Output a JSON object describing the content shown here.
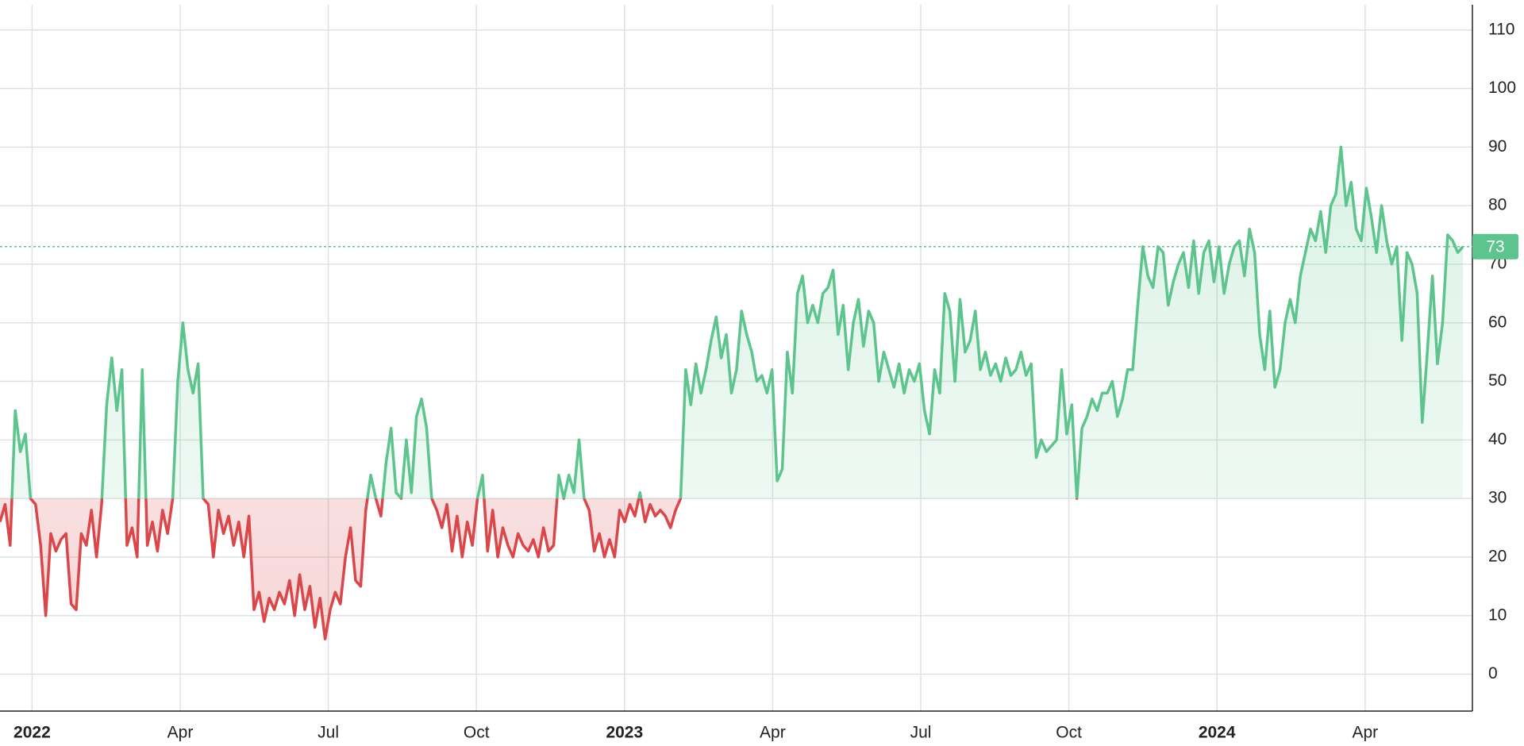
{
  "chart_data": {
    "type": "baseline-line",
    "baseline": 30,
    "ylim": [
      -6.3,
      114.3
    ],
    "yticks": [
      0,
      10,
      20,
      30,
      40,
      50,
      60,
      70,
      80,
      90,
      100,
      110
    ],
    "xlim": [
      "2021-12",
      "2024-05"
    ],
    "xticks": [
      {
        "value": "2022-01",
        "label": "2022"
      },
      {
        "value": "2022-04",
        "label": "Apr"
      },
      {
        "value": "2022-07",
        "label": "Jul"
      },
      {
        "value": "2022-10",
        "label": "Oct"
      },
      {
        "value": "2023-01",
        "label": "2023"
      },
      {
        "value": "2023-04",
        "label": "Apr"
      },
      {
        "value": "2023-07",
        "label": "Jul"
      },
      {
        "value": "2023-10",
        "label": "Oct"
      },
      {
        "value": "2024-01",
        "label": "2024"
      },
      {
        "value": "2024-04",
        "label": "Apr"
      }
    ],
    "grid": true,
    "color_above": "#5cc48c",
    "color_below": "#d9474b",
    "values": [
      26,
      29,
      22,
      45,
      38,
      41,
      30,
      29,
      22,
      10,
      24,
      21,
      23,
      24,
      12,
      11,
      24,
      22,
      28,
      20,
      29,
      46,
      54,
      45,
      52,
      22,
      25,
      20,
      52,
      22,
      26,
      21,
      28,
      24,
      30,
      50,
      60,
      52,
      48,
      53,
      30,
      29,
      20,
      28,
      24,
      27,
      22,
      26,
      20,
      27,
      11,
      14,
      9,
      13,
      11,
      14,
      12,
      16,
      10,
      17,
      11,
      15,
      8,
      13,
      6,
      11,
      14,
      12,
      20,
      25,
      16,
      15,
      28,
      34,
      30,
      27,
      36,
      42,
      31,
      30,
      40,
      31,
      44,
      47,
      42,
      30,
      28,
      25,
      29,
      21,
      27,
      20,
      26,
      22,
      30,
      34,
      21,
      28,
      20,
      25,
      22,
      20,
      24,
      22,
      21,
      23,
      20,
      25,
      21,
      22,
      34,
      30,
      34,
      31,
      40,
      30,
      28,
      21,
      24,
      20,
      23,
      20,
      28,
      26,
      29,
      27,
      31,
      26,
      29,
      27,
      28,
      27,
      25,
      28,
      30,
      52,
      46,
      53,
      48,
      52,
      57,
      61,
      54,
      58,
      48,
      52,
      62,
      58,
      55,
      50,
      51,
      48,
      52,
      33,
      35,
      55,
      48,
      65,
      68,
      60,
      63,
      60,
      65,
      66,
      69,
      58,
      63,
      52,
      60,
      64,
      56,
      62,
      60,
      50,
      55,
      52,
      49,
      53,
      48,
      52,
      50,
      53,
      45,
      41,
      52,
      48,
      65,
      62,
      50,
      64,
      55,
      57,
      62,
      52,
      55,
      51,
      53,
      50,
      54,
      51,
      52,
      55,
      51,
      53,
      37,
      40,
      38,
      39,
      40,
      52,
      41,
      46,
      30,
      42,
      44,
      47,
      45,
      48,
      48,
      50,
      44,
      47,
      52,
      52,
      63,
      73,
      68,
      66,
      73,
      72,
      63,
      67,
      70,
      72,
      66,
      74,
      65,
      72,
      74,
      67,
      73,
      65,
      70,
      73,
      74,
      68,
      76,
      72,
      58,
      52,
      62,
      49,
      52,
      60,
      64,
      60,
      68,
      72,
      76,
      74,
      79,
      72,
      80,
      82,
      90,
      80,
      84,
      76,
      74,
      83,
      78,
      72,
      80,
      74,
      70,
      73,
      57,
      72,
      70,
      65,
      43,
      55,
      68,
      53,
      60,
      75,
      74,
      72,
      73
    ]
  }
}
